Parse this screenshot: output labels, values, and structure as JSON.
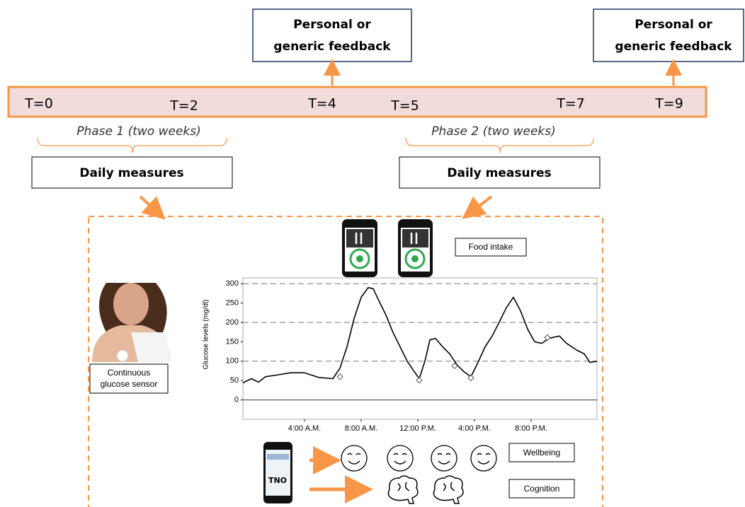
{
  "timeline": {
    "labels": [
      "T=0",
      "T=2",
      "T=4",
      "T=5",
      "T=7",
      "T=9"
    ]
  },
  "feedback_boxes": [
    {
      "lines": [
        "Personal or",
        "generic feedback"
      ]
    },
    {
      "lines": [
        "Personal or",
        "generic feedback"
      ]
    }
  ],
  "phases": [
    {
      "label": "Phase 1 (two weeks)",
      "measures": "Daily measures"
    },
    {
      "label": "Phase 2 (two weeks)",
      "measures": "Daily measures"
    }
  ],
  "inputs": {
    "food_intake": "Food intake",
    "sensor": [
      "Continuous",
      "glucose sensor"
    ],
    "phone_brand": "TNO",
    "wellbeing": "Wellbeing",
    "cognition": "Cognition"
  },
  "chart_data": {
    "type": "line",
    "y_label": "Glucose levels (mg/dl)",
    "x": [
      -0.35,
      0.25,
      0.75,
      1.25,
      2,
      3,
      4,
      5,
      6,
      6.5,
      7,
      7.5,
      8,
      8.5,
      8.85,
      9.25,
      9.75,
      10.25,
      10.75,
      11.25,
      11.75,
      12.1,
      12.5,
      12.85,
      13.25,
      13.75,
      14.25,
      14.75,
      15.25,
      15.75,
      16.25,
      16.75,
      17.25,
      17.75,
      18.25,
      18.75,
      19.25,
      19.75,
      20.25,
      20.75,
      21.25,
      22,
      22.5,
      23.25,
      23.75,
      24.15,
      24.65
    ],
    "series": [
      {
        "color": "#000000",
        "style": "line",
        "values": [
          44,
          55,
          46,
          60,
          64,
          70,
          70,
          58,
          55,
          82,
          137,
          210,
          265,
          290,
          287,
          256,
          219,
          174,
          137,
          100,
          73,
          55,
          100,
          155,
          159,
          137,
          119,
          91,
          73,
          60,
          97,
          137,
          165,
          201,
          238,
          265,
          230,
          183,
          150,
          146,
          159,
          165,
          146,
          128,
          119,
          97,
          100
        ]
      },
      {
        "color": "#555555",
        "style": "markers",
        "x": [
          6.5,
          12.1,
          14.6,
          15.75,
          21.15
        ],
        "values": [
          60,
          51,
          88,
          57,
          161
        ]
      }
    ],
    "xlim": [
      -0.35,
      24.65
    ],
    "ylim": [
      -50,
      315
    ],
    "xticks": [
      {
        "value": 4,
        "label": "4:00 A.M."
      },
      {
        "value": 8,
        "label": "8:00 A.M."
      },
      {
        "value": 12,
        "label": "12:00 P.M."
      },
      {
        "value": 16,
        "label": "4:00 P.M."
      },
      {
        "value": 20,
        "label": "8:00 P.M."
      }
    ],
    "yticks": [
      0,
      50,
      100,
      150,
      200,
      250,
      300
    ]
  }
}
